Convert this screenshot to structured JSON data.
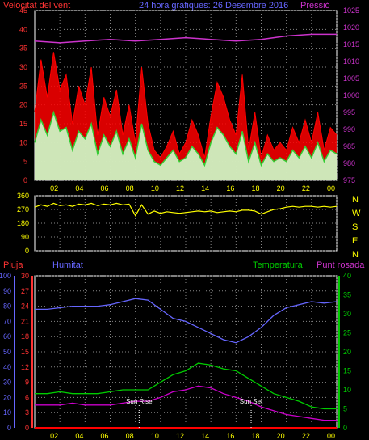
{
  "colors": {
    "wind_speed": "#ff0000",
    "wind_avg": "#33cc33",
    "gust_fill": "#ccffcc",
    "pressure": "#cc33cc",
    "direction": "#ffff00",
    "humidity": "#6666ff",
    "temperature": "#00cc00",
    "dewpoint": "#cc00cc",
    "rain": "#ff0000",
    "grid": "#888888",
    "axis_left": "#ff3333",
    "axis_right": "#cc33cc",
    "axis_green": "#00cc00",
    "axis_blue": "#6666ff",
    "text_yellow": "#ffff00"
  },
  "chart_data": [
    {
      "type": "line",
      "title": "24 hora gràfiques:  26 Desembre 2016",
      "left_label": "Velocitat del vent",
      "right_label": "Pressió",
      "x_ticks": [
        "02",
        "04",
        "06",
        "08",
        "10",
        "12",
        "14",
        "16",
        "18",
        "20",
        "22",
        "00"
      ],
      "y_left_ticks": [
        "0",
        "5",
        "10",
        "15",
        "20",
        "25",
        "30",
        "35",
        "40",
        "45"
      ],
      "y_right_ticks": [
        "975",
        "980",
        "985",
        "990",
        "995",
        "1000",
        "1005",
        "1010",
        "1015",
        "1020",
        "1025"
      ],
      "ylim_left": [
        0,
        45
      ],
      "ylim_right": [
        975,
        1025
      ],
      "series": [
        {
          "name": "Velocitat del vent",
          "axis": "left",
          "kind": "gust",
          "x": [
            0,
            0.5,
            1,
            1.5,
            2,
            2.5,
            3,
            3.5,
            4,
            4.5,
            5,
            5.5,
            6,
            6.5,
            7,
            7.5,
            8,
            8.5,
            9,
            9.5,
            10,
            10.5,
            11,
            11.5,
            12,
            12.5,
            13,
            13.5,
            14,
            14.5,
            15,
            15.5,
            16,
            16.5,
            17,
            17.5,
            18,
            18.5,
            19,
            19.5,
            20,
            20.5,
            21,
            21.5,
            22,
            22.5,
            23,
            23.5,
            24
          ],
          "values": [
            18,
            32,
            22,
            34,
            24,
            28,
            15,
            25,
            20,
            30,
            12,
            22,
            17,
            24,
            12,
            20,
            10,
            30,
            15,
            8,
            6,
            9,
            13,
            7,
            10,
            16,
            12,
            6,
            17,
            26,
            22,
            16,
            12,
            28,
            8,
            18,
            6,
            12,
            8,
            10,
            8,
            14,
            10,
            16,
            10,
            18,
            8,
            14,
            12
          ]
        },
        {
          "name": "Mitjana",
          "axis": "left",
          "kind": "avg",
          "x": [
            0,
            0.5,
            1,
            1.5,
            2,
            2.5,
            3,
            3.5,
            4,
            4.5,
            5,
            5.5,
            6,
            6.5,
            7,
            7.5,
            8,
            8.5,
            9,
            9.5,
            10,
            10.5,
            11,
            11.5,
            12,
            12.5,
            13,
            13.5,
            14,
            14.5,
            15,
            15.5,
            16,
            16.5,
            17,
            17.5,
            18,
            18.5,
            19,
            19.5,
            20,
            20.5,
            21,
            21.5,
            22,
            22.5,
            23,
            23.5,
            24
          ],
          "values": [
            10,
            16,
            12,
            18,
            13,
            14,
            8,
            13,
            11,
            15,
            7,
            12,
            9,
            13,
            7,
            11,
            6,
            15,
            8,
            5,
            4,
            6,
            8,
            5,
            6,
            9,
            7,
            4,
            10,
            14,
            12,
            9,
            7,
            13,
            5,
            10,
            4,
            7,
            5,
            6,
            5,
            8,
            6,
            9,
            6,
            10,
            5,
            8,
            7
          ]
        },
        {
          "name": "Pressió",
          "axis": "right",
          "x": [
            0,
            2,
            4,
            6,
            8,
            10,
            12,
            14,
            16,
            18,
            20,
            22,
            24
          ],
          "values": [
            1016,
            1015.5,
            1016,
            1016.5,
            1016,
            1016.5,
            1017,
            1016.5,
            1016,
            1016.5,
            1017.5,
            1018,
            1018
          ]
        }
      ]
    },
    {
      "type": "line",
      "right_labels": [
        "N",
        "W",
        "S",
        "E",
        "N"
      ],
      "y_ticks": [
        "360",
        "270",
        "180",
        "90",
        "0"
      ],
      "ylim": [
        0,
        360
      ],
      "series": [
        {
          "name": "Direcció",
          "axis": "left",
          "x": [
            0,
            0.5,
            1,
            1.5,
            2,
            2.5,
            3,
            3.5,
            4,
            4.5,
            5,
            5.5,
            6,
            6.5,
            7,
            7.5,
            8,
            8.5,
            9,
            9.5,
            10,
            10.5,
            11,
            11.5,
            12,
            12.5,
            13,
            13.5,
            14,
            14.5,
            15,
            15.5,
            16,
            16.5,
            17,
            17.5,
            18,
            18.5,
            19,
            19.5,
            20,
            20.5,
            21,
            21.5,
            22,
            22.5,
            23,
            23.5,
            24
          ],
          "values": [
            285,
            300,
            290,
            310,
            295,
            300,
            290,
            305,
            300,
            310,
            295,
            305,
            300,
            310,
            300,
            305,
            230,
            300,
            240,
            260,
            245,
            255,
            250,
            245,
            250,
            255,
            260,
            255,
            260,
            250,
            255,
            260,
            255,
            265,
            265,
            260,
            240,
            255,
            270,
            275,
            285,
            290,
            285,
            290,
            290,
            285,
            290,
            285,
            290
          ]
        }
      ]
    },
    {
      "type": "line",
      "labels": [
        "Pluja",
        "Humitat",
        "Temperatura",
        "Punt rosada"
      ],
      "y_rain_ticks": [
        "0",
        "3",
        "6",
        "9",
        "12",
        "15",
        "18",
        "21",
        "24",
        "27",
        "30"
      ],
      "y_hum_ticks": [
        "0",
        "10",
        "20",
        "30",
        "40",
        "50",
        "60",
        "70",
        "80",
        "90",
        "100"
      ],
      "y_temp_ticks": [
        "0",
        "5",
        "10",
        "15",
        "20",
        "25",
        "30",
        "35",
        "40"
      ],
      "ylim_temp": [
        0,
        40
      ],
      "ylim_hum": [
        0,
        100
      ],
      "annotations": [
        "Sun Rise",
        "Sun Set"
      ],
      "series": [
        {
          "name": "Humitat",
          "axis": "hum",
          "x": [
            0,
            1,
            2,
            3,
            4,
            5,
            6,
            7,
            8,
            9,
            10,
            11,
            12,
            13,
            14,
            15,
            16,
            17,
            18,
            19,
            20,
            21,
            22,
            23,
            24
          ],
          "values": [
            78,
            78,
            79,
            80,
            80,
            80,
            81,
            83,
            85,
            84,
            78,
            72,
            70,
            66,
            62,
            58,
            56,
            60,
            66,
            74,
            79,
            81,
            83,
            82,
            83
          ]
        },
        {
          "name": "Temperatura",
          "axis": "temp",
          "x": [
            0,
            1,
            2,
            3,
            4,
            5,
            6,
            7,
            8,
            9,
            10,
            11,
            12,
            13,
            14,
            15,
            16,
            17,
            18,
            19,
            20,
            21,
            22,
            23,
            24
          ],
          "values": [
            9,
            9,
            9.5,
            9,
            9,
            9,
            9.5,
            10,
            10,
            10,
            12,
            14,
            15,
            17,
            16.5,
            15.5,
            15,
            13,
            11,
            9,
            8,
            7,
            5.5,
            5,
            5
          ]
        },
        {
          "name": "Punt rosada",
          "axis": "temp",
          "x": [
            0,
            1,
            2,
            3,
            4,
            5,
            6,
            7,
            8,
            9,
            10,
            11,
            12,
            13,
            14,
            15,
            16,
            17,
            18,
            19,
            20,
            21,
            22,
            23,
            24
          ],
          "values": [
            6,
            6,
            6,
            6.5,
            6,
            6,
            6,
            6.5,
            7,
            7,
            8,
            9.5,
            10,
            11,
            10.5,
            9,
            8,
            7,
            5.5,
            4.5,
            3.5,
            3,
            2.5,
            2,
            2
          ]
        },
        {
          "name": "Pluja",
          "axis": "rain",
          "x": [
            0,
            24
          ],
          "values": [
            0,
            0
          ]
        }
      ]
    }
  ]
}
